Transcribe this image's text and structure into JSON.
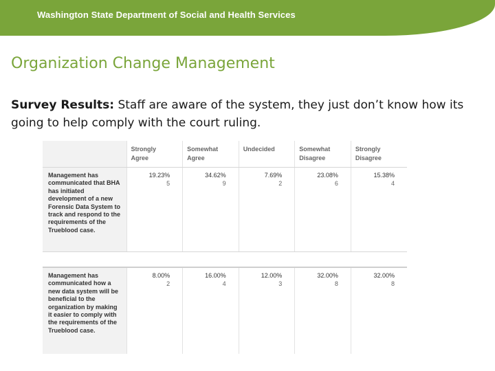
{
  "header": {
    "title": "Washington State Department of Social and Health Services",
    "color": "#7aa53a"
  },
  "slide": {
    "title": "Organization Change Management",
    "body_bold": "Survey Results:",
    "body_rest": " Staff are aware of the system, they just don’t know how its going to help comply with the court ruling."
  },
  "survey": {
    "columns": [
      {
        "line1": "Strongly",
        "line2": "Agree"
      },
      {
        "line1": "Somewhat",
        "line2": "Agree"
      },
      {
        "line1": "Undecided",
        "line2": ""
      },
      {
        "line1": "Somewhat",
        "line2": "Disagree"
      },
      {
        "line1": "Strongly",
        "line2": "Disagree"
      }
    ],
    "questions": [
      {
        "label": "Management has communicated that BHA has initiated development of a new Forensic Data System to track and respond to the requirements of the Trueblood case.",
        "cells": [
          {
            "pct": "19.23%",
            "count": "5"
          },
          {
            "pct": "34.62%",
            "count": "9"
          },
          {
            "pct": "7.69%",
            "count": "2"
          },
          {
            "pct": "23.08%",
            "count": "6"
          },
          {
            "pct": "15.38%",
            "count": "4"
          }
        ]
      },
      {
        "label": "Management has communicated how a new data system will be beneficial to the organization by making it easier to comply with the requirements of the Trueblood case.",
        "cells": [
          {
            "pct": "8.00%",
            "count": "2"
          },
          {
            "pct": "16.00%",
            "count": "4"
          },
          {
            "pct": "12.00%",
            "count": "3"
          },
          {
            "pct": "32.00%",
            "count": "8"
          },
          {
            "pct": "32.00%",
            "count": "8"
          }
        ]
      }
    ]
  }
}
